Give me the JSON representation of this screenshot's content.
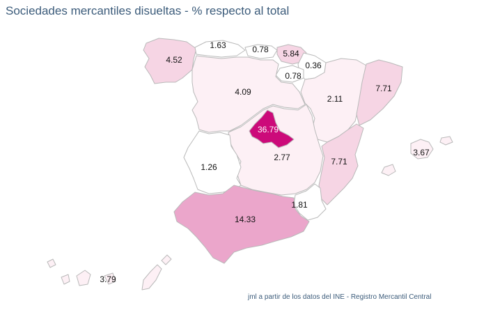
{
  "title": "Sociedades mercantiles disueltas - % respecto al total",
  "credit": "jml a partir de los datos del INE - Registro Mercantil Central",
  "colors": {
    "very_low": "#ffffff",
    "low": "#fdf0f5",
    "mid": "#f6d5e4",
    "high": "#eba6cb",
    "max": "#cc0a7a",
    "border": "#b9b9b9"
  },
  "regions": [
    {
      "id": "galicia",
      "label": "4.52"
    },
    {
      "id": "asturias",
      "label": "1.63"
    },
    {
      "id": "cantabria",
      "label": "0.78"
    },
    {
      "id": "pais-vasco",
      "label": "5.84"
    },
    {
      "id": "navarra",
      "label": "0.36"
    },
    {
      "id": "la-rioja",
      "label": "0.78"
    },
    {
      "id": "aragon",
      "label": "2.11"
    },
    {
      "id": "cataluna",
      "label": "7.71"
    },
    {
      "id": "castilla-leon",
      "label": "4.09"
    },
    {
      "id": "madrid",
      "label": "36.79"
    },
    {
      "id": "castilla-la-mancha",
      "label": "2.77"
    },
    {
      "id": "comunidad-valenciana",
      "label": "7.71"
    },
    {
      "id": "baleares",
      "label": "3.67"
    },
    {
      "id": "extremadura",
      "label": "1.26"
    },
    {
      "id": "murcia",
      "label": "1.81"
    },
    {
      "id": "andalucia",
      "label": "14.33"
    },
    {
      "id": "canarias",
      "label": "3.79"
    }
  ]
}
